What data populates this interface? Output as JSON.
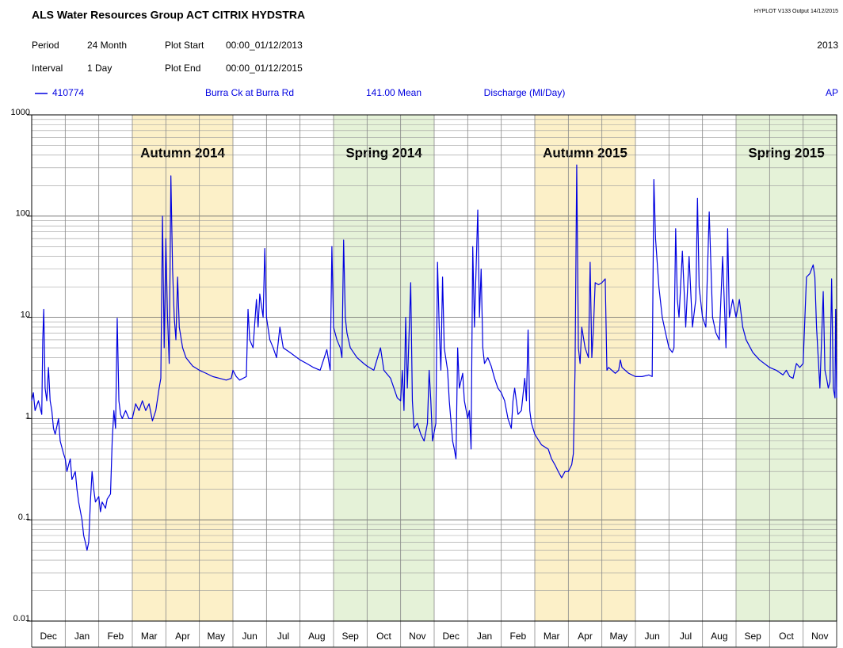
{
  "header": {
    "title": "ALS Water Resources Group ACT CITRIX HYDSTRA",
    "program": "HYPLOT V133  Output 14/12/2015",
    "period_label": "Period",
    "period": "24 Month",
    "plot_start_label": "Plot Start",
    "plot_start": "00:00_01/12/2013",
    "year": "2013",
    "interval_label": "Interval",
    "interval": "1 Day",
    "plot_end_label": "Plot End",
    "plot_end": "00:00_01/12/2015"
  },
  "legend": {
    "site": "Burra Ck at Burra Rd",
    "statistic": "141.00 Mean",
    "variable": "Discharge (Ml/Day)",
    "quality": "AP"
  },
  "chart_data": {
    "type": "line",
    "log_y": true,
    "grid": true,
    "categories": [
      "Dec",
      "Jan",
      "Feb",
      "Mar",
      "Apr",
      "May",
      "Jun",
      "Jul",
      "Aug",
      "Sep",
      "Oct",
      "Nov",
      "Dec",
      "Jan",
      "Feb",
      "Mar",
      "Apr",
      "May",
      "Jun",
      "Jul",
      "Aug",
      "Sep",
      "Oct",
      "Nov"
    ],
    "xlim": [
      0,
      24
    ],
    "ylim": [
      0.01,
      1000
    ],
    "yticks": [
      0.01,
      0.1,
      1,
      10,
      100,
      1000
    ],
    "yminor_ticks": [
      0.02,
      0.03,
      0.04,
      0.05,
      0.06,
      0.07,
      0.08,
      0.09,
      0.2,
      0.3,
      0.4,
      0.5,
      0.6,
      0.7,
      0.8,
      0.9,
      2,
      3,
      4,
      5,
      6,
      7,
      8,
      9,
      20,
      30,
      40,
      50,
      60,
      70,
      80,
      90,
      200,
      300,
      400,
      500,
      600,
      700,
      800,
      900
    ],
    "bands": [
      {
        "label": "Autumn 2014",
        "start": 3,
        "end": 6,
        "color": "#fcf0c8"
      },
      {
        "label": "Spring 2014",
        "start": 9,
        "end": 12,
        "color": "#e5f2d8"
      },
      {
        "label": "Autumn 2015",
        "start": 15,
        "end": 18,
        "color": "#fcf0c8"
      },
      {
        "label": "Spring 2015",
        "start": 21,
        "end": 24,
        "color": "#e5f2d8"
      }
    ],
    "x": [
      0,
      0.05,
      0.1,
      0.2,
      0.3,
      0.33,
      0.36,
      0.4,
      0.45,
      0.5,
      0.55,
      0.6,
      0.65,
      0.7,
      0.8,
      0.85,
      0.95,
      1.0,
      1.05,
      1.1,
      1.15,
      1.2,
      1.3,
      1.35,
      1.4,
      1.5,
      1.55,
      1.6,
      1.65,
      1.7,
      1.75,
      1.8,
      1.85,
      1.9,
      2.0,
      2.05,
      2.1,
      2.2,
      2.25,
      2.35,
      2.4,
      2.45,
      2.5,
      2.55,
      2.6,
      2.65,
      2.7,
      2.8,
      2.9,
      3.0,
      3.1,
      3.2,
      3.3,
      3.4,
      3.5,
      3.6,
      3.7,
      3.8,
      3.85,
      3.9,
      3.95,
      4.0,
      4.05,
      4.1,
      4.15,
      4.2,
      4.25,
      4.3,
      4.35,
      4.4,
      4.5,
      4.6,
      4.8,
      5.0,
      5.2,
      5.4,
      5.6,
      5.8,
      5.95,
      6.0,
      6.1,
      6.2,
      6.4,
      6.45,
      6.5,
      6.6,
      6.7,
      6.75,
      6.8,
      6.9,
      6.95,
      7.0,
      7.1,
      7.2,
      7.3,
      7.4,
      7.5,
      7.7,
      8.0,
      8.2,
      8.4,
      8.6,
      8.8,
      8.9,
      8.95,
      9.0,
      9.1,
      9.2,
      9.25,
      9.3,
      9.35,
      9.4,
      9.5,
      9.7,
      9.9,
      10.0,
      10.2,
      10.4,
      10.5,
      10.7,
      10.8,
      10.9,
      11.0,
      11.05,
      11.1,
      11.15,
      11.2,
      11.3,
      11.35,
      11.4,
      11.5,
      11.6,
      11.7,
      11.8,
      11.85,
      11.9,
      11.95,
      12.05,
      12.1,
      12.15,
      12.2,
      12.25,
      12.3,
      12.4,
      12.45,
      12.55,
      12.6,
      12.65,
      12.7,
      12.75,
      12.85,
      12.9,
      13.0,
      13.05,
      13.1,
      13.15,
      13.2,
      13.3,
      13.35,
      13.4,
      13.45,
      13.5,
      13.6,
      13.7,
      13.8,
      13.9,
      14.0,
      14.1,
      14.2,
      14.3,
      14.35,
      14.4,
      14.45,
      14.5,
      14.6,
      14.7,
      14.75,
      14.8,
      14.85,
      14.9,
      15.0,
      15.2,
      15.4,
      15.5,
      15.6,
      15.7,
      15.8,
      15.9,
      16.0,
      16.1,
      16.15,
      16.2,
      16.25,
      16.3,
      16.35,
      16.4,
      16.5,
      16.6,
      16.65,
      16.7,
      16.75,
      16.8,
      16.9,
      17.0,
      17.1,
      17.15,
      17.2,
      17.4,
      17.5,
      17.55,
      17.6,
      17.8,
      18.0,
      18.2,
      18.4,
      18.5,
      18.55,
      18.6,
      18.7,
      18.8,
      18.9,
      19.0,
      19.1,
      19.15,
      19.2,
      19.25,
      19.3,
      19.4,
      19.5,
      19.6,
      19.7,
      19.8,
      19.85,
      19.9,
      20.0,
      20.1,
      20.2,
      20.3,
      20.4,
      20.5,
      20.6,
      20.7,
      20.75,
      20.8,
      20.9,
      21.0,
      21.1,
      21.2,
      21.3,
      21.5,
      21.7,
      22.0,
      22.2,
      22.4,
      22.5,
      22.6,
      22.7,
      22.8,
      22.9,
      23.0,
      23.1,
      23.2,
      23.3,
      23.35,
      23.4,
      23.45,
      23.5,
      23.6,
      23.65,
      23.7,
      23.75,
      23.8,
      23.85,
      23.9,
      23.95,
      23.97,
      24.0
    ],
    "series": [
      {
        "name": "410774",
        "color": "#0000e0",
        "values": [
          1.5,
          1.8,
          1.2,
          1.5,
          1.1,
          6,
          12,
          2,
          1.5,
          3.2,
          1.5,
          1.2,
          0.8,
          0.7,
          1.0,
          0.6,
          0.45,
          0.4,
          0.3,
          0.35,
          0.4,
          0.25,
          0.3,
          0.2,
          0.15,
          0.1,
          0.07,
          0.06,
          0.05,
          0.06,
          0.15,
          0.3,
          0.2,
          0.15,
          0.17,
          0.12,
          0.15,
          0.13,
          0.16,
          0.18,
          0.6,
          1.2,
          0.8,
          9.8,
          1.5,
          1.1,
          1.0,
          1.2,
          1.0,
          1.0,
          1.4,
          1.2,
          1.5,
          1.2,
          1.4,
          0.95,
          1.2,
          2.0,
          2.5,
          100,
          5,
          60,
          10,
          3.5,
          250,
          30,
          10,
          6,
          25,
          8,
          5,
          4,
          3.3,
          3.0,
          2.8,
          2.6,
          2.5,
          2.4,
          2.5,
          3.0,
          2.6,
          2.4,
          2.6,
          12,
          6,
          5,
          15,
          8,
          17,
          10,
          48,
          10,
          6,
          5,
          4,
          8,
          5,
          4.5,
          3.8,
          3.5,
          3.2,
          3.0,
          4.8,
          3,
          50,
          8,
          6,
          5,
          4,
          58,
          10,
          7,
          5,
          4,
          3.5,
          3.3,
          3.0,
          5,
          3,
          2.5,
          2,
          1.6,
          1.5,
          3,
          1.2,
          10,
          2,
          22,
          1.5,
          0.8,
          0.9,
          0.7,
          0.6,
          0.9,
          3,
          1.5,
          0.6,
          0.9,
          35,
          8,
          3,
          25,
          5,
          3,
          1.5,
          0.6,
          0.5,
          0.4,
          5,
          2,
          2.8,
          1.5,
          1.0,
          1.2,
          0.5,
          50,
          8,
          115,
          10,
          30,
          5,
          3.5,
          4,
          3.3,
          2.5,
          2.0,
          1.8,
          1.5,
          1.0,
          0.8,
          1.5,
          2,
          1.5,
          1.1,
          1.2,
          2.5,
          1.5,
          7.5,
          1.2,
          0.9,
          0.7,
          0.55,
          0.5,
          0.4,
          0.35,
          0.3,
          0.26,
          0.3,
          0.3,
          0.35,
          0.45,
          3,
          320,
          5,
          3.5,
          8,
          5,
          4,
          35,
          4,
          8,
          22,
          21,
          22,
          24,
          3,
          3.2,
          2.8,
          3,
          3.8,
          3.2,
          2.8,
          2.6,
          2.6,
          2.7,
          2.6,
          230,
          60,
          20,
          10,
          7,
          5,
          4.5,
          5,
          75,
          15,
          10,
          45,
          8,
          40,
          8,
          15,
          150,
          20,
          10,
          8,
          110,
          10,
          7,
          6,
          40,
          5,
          75,
          10,
          15,
          10,
          15,
          8,
          6,
          4.5,
          3.8,
          3.2,
          3.0,
          2.7,
          3,
          2.6,
          2.5,
          3.5,
          3.2,
          3.5,
          25,
          27,
          33,
          25,
          8,
          4,
          2,
          18,
          3,
          2.5,
          2.0,
          2.3,
          24,
          2,
          1.6,
          12,
          1.6
        ]
      }
    ]
  }
}
